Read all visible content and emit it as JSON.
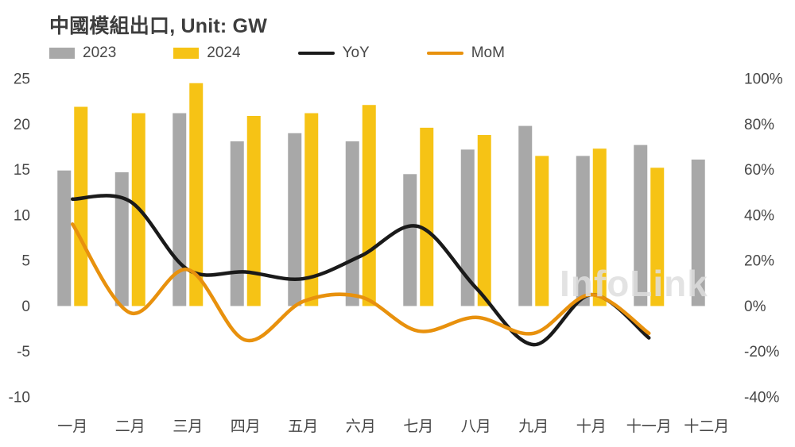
{
  "title": "中國模組出口, Unit: GW",
  "watermark": "InfoLink",
  "legend": [
    {
      "label": "2023",
      "type": "bar",
      "color": "#a8a8a8"
    },
    {
      "label": "2024",
      "type": "bar",
      "color": "#f6c315"
    },
    {
      "label": "YoY",
      "type": "line",
      "color": "#1a1a1a"
    },
    {
      "label": "MoM",
      "type": "line",
      "color": "#e8910d"
    }
  ],
  "chart_data": {
    "type": "bar+line combo",
    "title": "中國模組出口, Unit: GW",
    "categories": [
      "一月",
      "二月",
      "三月",
      "四月",
      "五月",
      "六月",
      "七月",
      "八月",
      "九月",
      "十月",
      "十一月",
      "十二月"
    ],
    "series": [
      {
        "name": "2023",
        "type": "bar",
        "axis": "left",
        "color": "#a8a8a8",
        "values": [
          14.9,
          14.7,
          21.2,
          18.1,
          19.0,
          18.1,
          14.5,
          17.2,
          19.8,
          16.5,
          17.7,
          16.1
        ]
      },
      {
        "name": "2024",
        "type": "bar",
        "axis": "left",
        "color": "#f6c315",
        "values": [
          21.9,
          21.2,
          24.5,
          20.9,
          21.2,
          22.1,
          19.6,
          18.8,
          16.5,
          17.3,
          15.2,
          null
        ]
      },
      {
        "name": "YoY",
        "type": "line",
        "axis": "right",
        "color": "#1a1a1a",
        "values": [
          47,
          46,
          16,
          15,
          12,
          22,
          35,
          8,
          -17,
          5,
          -14,
          null
        ]
      },
      {
        "name": "MoM",
        "type": "line",
        "axis": "right",
        "color": "#e8910d",
        "values": [
          36,
          -3,
          16,
          -15,
          2,
          4,
          -11,
          -5,
          -12,
          5,
          -12,
          null
        ]
      }
    ],
    "left_axis": {
      "min": -10,
      "max": 25,
      "tick_labels": [
        "25",
        "20",
        "15",
        "10",
        "5",
        "0",
        "-5",
        "-10"
      ],
      "unit": "GW"
    },
    "right_axis": {
      "min": -40,
      "max": 100,
      "tick_labels": [
        "100%",
        "80%",
        "60%",
        "40%",
        "20%",
        "0%",
        "-20%",
        "-40%"
      ]
    },
    "legend_position": "top",
    "grid": "off"
  }
}
